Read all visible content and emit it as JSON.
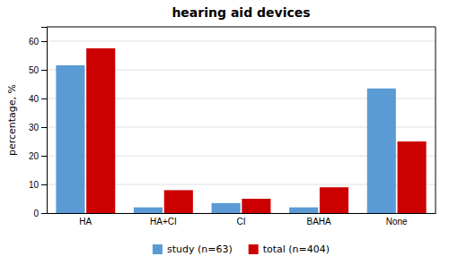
{
  "chart_data": {
    "type": "bar",
    "title": "hearing aid devices",
    "categories": [
      "HA",
      "HA+CI",
      "CI",
      "BAHA",
      "None"
    ],
    "series": [
      {
        "name": "study (n=63)",
        "color": "#5B9BD5",
        "values": [
          51.6,
          2.0,
          3.5,
          2.0,
          43.5
        ]
      },
      {
        "name": "total (n=404)",
        "color": "#CC0000",
        "values": [
          57.5,
          8.0,
          5.0,
          9.0,
          25.0
        ]
      }
    ],
    "ylabel": "percentage, %",
    "ylim": [
      0,
      65
    ],
    "yticks": [
      0,
      10,
      20,
      30,
      40,
      50,
      60
    ],
    "grid": true,
    "legend": "bottom"
  }
}
